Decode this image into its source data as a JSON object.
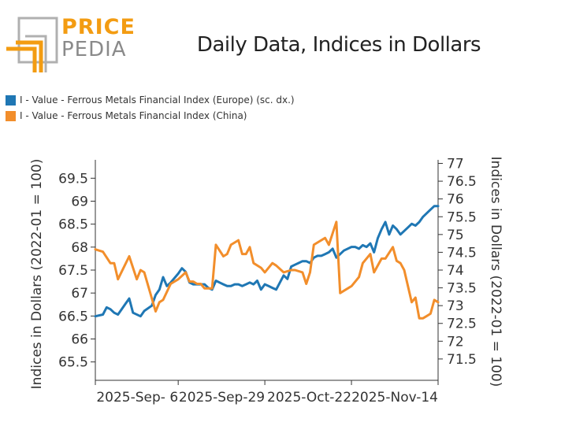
{
  "brand": {
    "price": "PRICE",
    "pedia": "PEDIA",
    "price_color": "#f39c12",
    "pedia_color": "#8a8a8a"
  },
  "chart_data": {
    "type": "line",
    "title": "Daily Data, Indices in Dollars",
    "ylabel": "Indices in Dollars (2022-01 = 100)",
    "y2label": "Indices in Dollars (2022-01 = 100)",
    "x_tick_labels": [
      "2025-Sep- 6",
      "2025-Sep-29",
      "2025-Oct-22",
      "2025-Nov-14"
    ],
    "x_tick_days": [
      22,
      45,
      68,
      91
    ],
    "xlim_days": [
      0,
      91
    ],
    "ylim": [
      65.1,
      69.9
    ],
    "y_ticks": [
      65.5,
      66,
      66.5,
      67,
      67.5,
      68,
      68.5,
      69,
      69.5
    ],
    "y_tick_labels": [
      "65.5",
      "66",
      "66.5",
      "67",
      "67.5",
      "68",
      "68.5",
      "69",
      "69.5"
    ],
    "y2lim": [
      70.9,
      77.1
    ],
    "y2_ticks": [
      71.5,
      72,
      72.5,
      73,
      73.5,
      74,
      74.5,
      75,
      75.5,
      76,
      76.5,
      77
    ],
    "y2_tick_labels": [
      "71.5",
      "72",
      "72.5",
      "73",
      "73.5",
      "74",
      "74.5",
      "75",
      "75.5",
      "76",
      "76.5",
      "77"
    ],
    "grid": false,
    "series": [
      {
        "name": "I - Value - Ferrous Metals Financial Index (Europe) (sc. dx.)",
        "axis": "right",
        "color": "#1f77b4",
        "x": [
          0,
          2,
          3,
          4,
          5,
          6,
          8,
          9,
          10,
          12,
          13,
          15,
          16,
          17,
          18,
          19,
          20,
          22,
          23,
          24,
          25,
          26,
          27,
          28,
          29,
          30,
          31,
          32,
          33,
          34,
          35,
          36,
          37,
          38,
          39,
          40,
          41,
          42,
          43,
          44,
          45,
          46,
          47,
          48,
          50,
          51,
          52,
          53,
          54,
          55,
          56,
          57,
          58,
          59,
          60,
          61,
          62,
          63,
          64,
          65,
          66,
          68,
          69,
          70,
          71,
          72,
          73,
          74,
          75,
          76,
          77,
          78,
          79,
          80,
          81,
          82,
          83,
          84,
          85,
          86,
          87,
          88,
          89,
          90,
          91
        ],
        "y": [
          72.7,
          72.75,
          72.95,
          72.9,
          72.8,
          72.75,
          73.05,
          73.2,
          72.8,
          72.7,
          72.85,
          73.0,
          73.3,
          73.45,
          73.8,
          73.55,
          73.65,
          73.9,
          74.05,
          73.95,
          73.65,
          73.6,
          73.6,
          73.6,
          73.6,
          73.5,
          73.45,
          73.7,
          73.65,
          73.6,
          73.55,
          73.55,
          73.6,
          73.6,
          73.55,
          73.6,
          73.65,
          73.6,
          73.7,
          73.45,
          73.6,
          73.55,
          73.5,
          73.45,
          73.85,
          73.75,
          74.1,
          74.15,
          74.2,
          74.25,
          74.25,
          74.2,
          74.35,
          74.4,
          74.4,
          74.45,
          74.5,
          74.6,
          74.35,
          74.45,
          74.55,
          74.65,
          74.65,
          74.6,
          74.7,
          74.65,
          74.75,
          74.5,
          74.9,
          75.15,
          75.35,
          75.0,
          75.25,
          75.15,
          75.0,
          75.1,
          75.2,
          75.3,
          75.25,
          75.35,
          75.5,
          75.6,
          75.7,
          75.8,
          75.8
        ]
      },
      {
        "name": "I - Value - Ferrous Metals Financial Index (China)",
        "axis": "left",
        "color": "#f28e2b",
        "x": [
          0,
          2,
          4,
          5,
          6,
          9,
          11,
          12,
          13,
          16,
          17,
          18,
          20,
          22,
          24,
          25,
          26,
          27,
          28,
          29,
          30,
          31,
          32,
          34,
          35,
          36,
          38,
          39,
          40,
          41,
          42,
          44,
          45,
          47,
          48,
          50,
          52,
          53,
          55,
          56,
          57,
          58,
          59,
          61,
          62,
          64,
          65,
          67,
          68,
          70,
          71,
          73,
          74,
          76,
          77,
          79,
          80,
          81,
          82,
          84,
          85,
          86,
          87,
          88,
          89,
          90,
          91
        ],
        "y": [
          67.95,
          67.9,
          67.65,
          67.65,
          67.3,
          67.8,
          67.3,
          67.5,
          67.45,
          66.6,
          66.8,
          66.85,
          67.2,
          67.3,
          67.45,
          67.25,
          67.25,
          67.2,
          67.2,
          67.1,
          67.1,
          67.1,
          68.05,
          67.8,
          67.85,
          68.05,
          68.15,
          67.85,
          67.85,
          68.0,
          67.65,
          67.55,
          67.45,
          67.65,
          67.6,
          67.45,
          67.5,
          67.5,
          67.45,
          67.2,
          67.45,
          68.05,
          68.1,
          68.2,
          68.05,
          68.55,
          67.0,
          67.1,
          67.15,
          67.35,
          67.65,
          67.85,
          67.45,
          67.75,
          67.75,
          68.0,
          67.7,
          67.65,
          67.5,
          66.8,
          66.9,
          66.45,
          66.45,
          66.5,
          66.55,
          66.85,
          66.8
        ]
      }
    ]
  }
}
